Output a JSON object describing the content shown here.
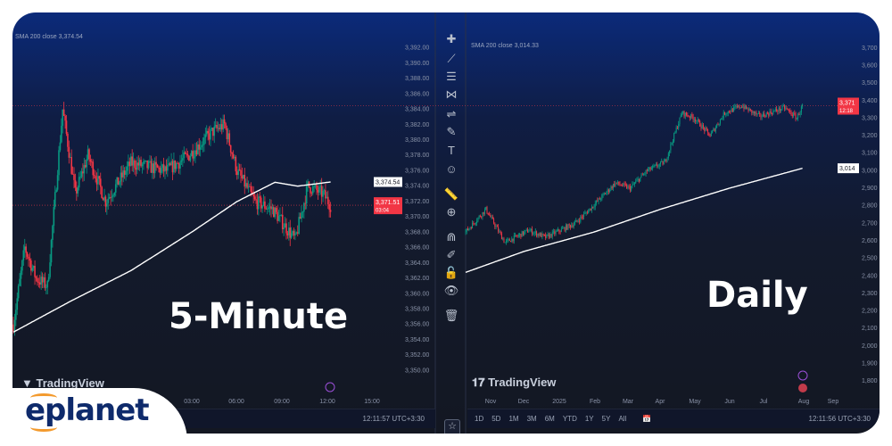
{
  "brand": {
    "logo_text": "eplanet",
    "logo_color": "#0e2a6b",
    "accent": "#f39a2d"
  },
  "left_panel": {
    "label": "5-Minute",
    "legend": "SMA 200 close  3,374.54",
    "watermark": "TradingView",
    "time_labels": [
      "03:00",
      "06:00",
      "09:00",
      "12:00",
      "15:00"
    ],
    "status_time": "12:11:57 UTC+3:30",
    "price_badge": "3,371.51",
    "countdown": "03:04",
    "sma_badge": "3,374.54"
  },
  "right_panel": {
    "label": "Daily",
    "legend": "SMA 200 close  3,014.33",
    "watermark": "TradingView",
    "time_labels": [
      "Nov",
      "Dec",
      "2025",
      "Feb",
      "Mar",
      "Apr",
      "May",
      "Jun",
      "Jul",
      "Aug",
      "Sep"
    ],
    "status_time": "12:11:56 UTC+3:30",
    "price_badge": "3,371",
    "countdown": "12:18",
    "sma_badge": "3,014",
    "ranges": [
      "1D",
      "5D",
      "1M",
      "3M",
      "6M",
      "YTD",
      "1Y",
      "5Y",
      "All"
    ]
  },
  "toolbar": {
    "tools": [
      "cursor",
      "trend-line",
      "fib",
      "pattern",
      "measure-lines",
      "brush",
      "text",
      "emoji",
      "ruler",
      "zoom",
      "magnet",
      "lock-drawing",
      "lock",
      "eye",
      "trash"
    ]
  },
  "colors": {
    "up": "#089981",
    "down": "#f23645",
    "sma": "#ffffff",
    "price_line": "#f23645"
  },
  "chart_data": [
    {
      "type": "candlestick",
      "timeframe": "5-Minute",
      "y_ticks": [
        3350,
        3352,
        3354,
        3356,
        3358,
        3360,
        3362,
        3364,
        3366,
        3368,
        3370,
        3372,
        3374,
        3376,
        3378,
        3380,
        3382,
        3384,
        3386,
        3388,
        3390,
        3392
      ],
      "ylim": [
        3349,
        3393
      ],
      "close_path": [
        [
          "15:15",
          3356
        ],
        [
          "16:00",
          3366
        ],
        [
          "16:45",
          3362
        ],
        [
          "17:30",
          3361
        ],
        [
          "18:30",
          3384
        ],
        [
          "19:20",
          3373
        ],
        [
          "20:10",
          3378
        ],
        [
          "21:20",
          3372
        ],
        [
          "23:00",
          3377
        ],
        [
          "01:20",
          3376
        ],
        [
          "02:50",
          3378
        ],
        [
          "04:20",
          3381
        ],
        [
          "05:10",
          3382
        ],
        [
          "06:00",
          3376
        ],
        [
          "07:10",
          3372
        ],
        [
          "08:20",
          3371
        ],
        [
          "09:50",
          3367
        ],
        [
          "10:40",
          3374
        ],
        [
          "11:40",
          3373
        ],
        [
          "12:10",
          3371.51
        ]
      ],
      "sma_path": [
        [
          "15:15",
          3355
        ],
        [
          "19:00",
          3359
        ],
        [
          "23:00",
          3363
        ],
        [
          "03:00",
          3368
        ],
        [
          "06:00",
          3372
        ],
        [
          "08:30",
          3374.5
        ],
        [
          "10:00",
          3374
        ],
        [
          "12:10",
          3374.54
        ]
      ],
      "last_price": 3371.51,
      "sma_last": 3374.54
    },
    {
      "type": "candlestick",
      "timeframe": "Daily",
      "y_ticks": [
        1800,
        1900,
        2000,
        2100,
        2200,
        2300,
        2400,
        2500,
        2600,
        2700,
        2800,
        2900,
        3000,
        3100,
        3200,
        3300,
        3400,
        3500,
        3600,
        3700
      ],
      "ylim": [
        1760,
        3740
      ],
      "close_path": [
        [
          "2024-10-10",
          2650
        ],
        [
          "2024-10-28",
          2780
        ],
        [
          "2024-11-14",
          2590
        ],
        [
          "2024-12-05",
          2660
        ],
        [
          "2024-12-20",
          2620
        ],
        [
          "2025-01-15",
          2700
        ],
        [
          "2025-01-25",
          2760
        ],
        [
          "2025-02-20",
          2930
        ],
        [
          "2025-03-05",
          2900
        ],
        [
          "2025-03-20",
          3000
        ],
        [
          "2025-04-05",
          3050
        ],
        [
          "2025-04-20",
          3330
        ],
        [
          "2025-05-01",
          3300
        ],
        [
          "2025-05-15",
          3200
        ],
        [
          "2025-05-28",
          3330
        ],
        [
          "2025-06-12",
          3370
        ],
        [
          "2025-06-28",
          3310
        ],
        [
          "2025-07-20",
          3360
        ],
        [
          "2025-07-31",
          3300
        ],
        [
          "2025-08-05",
          3371
        ]
      ],
      "sma_path": [
        [
          "2024-10-10",
          2420
        ],
        [
          "2024-12-01",
          2540
        ],
        [
          "2025-02-01",
          2650
        ],
        [
          "2025-04-01",
          2780
        ],
        [
          "2025-06-01",
          2900
        ],
        [
          "2025-08-05",
          3014
        ]
      ],
      "last_price": 3371,
      "sma_last": 3014
    }
  ]
}
